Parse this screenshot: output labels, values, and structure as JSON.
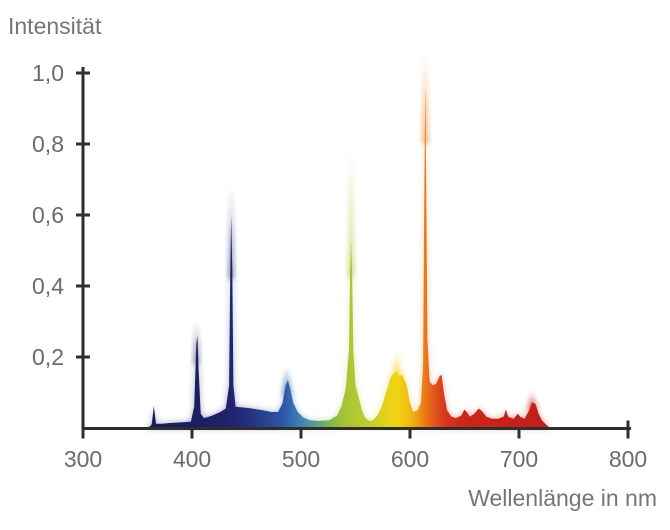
{
  "page": {
    "background_color": "#ffffff",
    "axis_color": "#2e2e2e",
    "tick_label_color": "#6b6b6b",
    "axis_title_color": "#757575"
  },
  "chart_data": {
    "type": "area",
    "title": "",
    "ylabel": "Intensität",
    "xlabel": "Wellenlänge in nm",
    "xlim": [
      300,
      800
    ],
    "ylim": [
      0,
      1.0
    ],
    "x_ticks": [
      300,
      400,
      500,
      600,
      700,
      800
    ],
    "x_tick_labels": [
      "300",
      "400",
      "500",
      "600",
      "700",
      "800"
    ],
    "y_ticks": [
      0.2,
      0.4,
      0.6,
      0.8,
      1.0
    ],
    "y_tick_labels": [
      "0,2",
      "0,4",
      "0,6",
      "0,8",
      "1,0"
    ],
    "grid": false,
    "legend": false,
    "main_peaks": [
      {
        "nm": 365,
        "intensity": 0.06
      },
      {
        "nm": 405,
        "intensity": 0.26
      },
      {
        "nm": 436,
        "intensity": 0.6
      },
      {
        "nm": 487,
        "intensity": 0.14
      },
      {
        "nm": 546,
        "intensity": 0.53
      },
      {
        "nm": 588,
        "intensity": 0.16
      },
      {
        "nm": 614,
        "intensity": 0.97
      },
      {
        "nm": 628,
        "intensity": 0.15
      },
      {
        "nm": 663,
        "intensity": 0.055
      },
      {
        "nm": 688,
        "intensity": 0.055
      },
      {
        "nm": 712,
        "intensity": 0.075
      }
    ],
    "profile": [
      [
        355,
        0
      ],
      [
        361,
        0.004
      ],
      [
        363,
        0.01
      ],
      [
        365,
        0.062
      ],
      [
        367,
        0.012
      ],
      [
        372,
        0.012
      ],
      [
        380,
        0.014
      ],
      [
        392,
        0.016
      ],
      [
        399,
        0.018
      ],
      [
        402,
        0.06
      ],
      [
        404,
        0.24
      ],
      [
        405,
        0.26
      ],
      [
        406,
        0.17
      ],
      [
        408,
        0.04
      ],
      [
        411,
        0.028
      ],
      [
        418,
        0.034
      ],
      [
        426,
        0.045
      ],
      [
        431,
        0.055
      ],
      [
        434,
        0.12
      ],
      [
        435,
        0.42
      ],
      [
        436,
        0.6
      ],
      [
        437,
        0.44
      ],
      [
        438,
        0.12
      ],
      [
        440,
        0.06
      ],
      [
        446,
        0.058
      ],
      [
        455,
        0.055
      ],
      [
        465,
        0.05
      ],
      [
        473,
        0.045
      ],
      [
        479,
        0.045
      ],
      [
        483,
        0.07
      ],
      [
        486,
        0.12
      ],
      [
        488,
        0.135
      ],
      [
        490,
        0.11
      ],
      [
        493,
        0.07
      ],
      [
        497,
        0.045
      ],
      [
        502,
        0.03
      ],
      [
        508,
        0.022
      ],
      [
        517,
        0.02
      ],
      [
        526,
        0.022
      ],
      [
        533,
        0.035
      ],
      [
        537,
        0.06
      ],
      [
        541,
        0.11
      ],
      [
        544,
        0.22
      ],
      [
        545,
        0.44
      ],
      [
        546,
        0.53
      ],
      [
        547,
        0.42
      ],
      [
        548,
        0.22
      ],
      [
        550,
        0.12
      ],
      [
        553,
        0.085
      ],
      [
        556,
        0.05
      ],
      [
        559,
        0.028
      ],
      [
        563,
        0.02
      ],
      [
        566,
        0.022
      ],
      [
        570,
        0.035
      ],
      [
        574,
        0.06
      ],
      [
        578,
        0.1
      ],
      [
        582,
        0.14
      ],
      [
        585,
        0.155
      ],
      [
        588,
        0.16
      ],
      [
        590,
        0.145
      ],
      [
        593,
        0.15
      ],
      [
        597,
        0.12
      ],
      [
        600,
        0.07
      ],
      [
        603,
        0.045
      ],
      [
        607,
        0.05
      ],
      [
        610,
        0.07
      ],
      [
        612,
        0.18
      ],
      [
        613,
        0.62
      ],
      [
        614,
        0.97
      ],
      [
        615,
        0.62
      ],
      [
        616,
        0.25
      ],
      [
        618,
        0.13
      ],
      [
        621,
        0.12
      ],
      [
        624,
        0.125
      ],
      [
        627,
        0.145
      ],
      [
        629,
        0.15
      ],
      [
        631,
        0.1
      ],
      [
        634,
        0.05
      ],
      [
        638,
        0.032
      ],
      [
        642,
        0.028
      ],
      [
        647,
        0.035
      ],
      [
        650,
        0.052
      ],
      [
        652,
        0.045
      ],
      [
        655,
        0.032
      ],
      [
        659,
        0.04
      ],
      [
        663,
        0.055
      ],
      [
        666,
        0.048
      ],
      [
        670,
        0.032
      ],
      [
        675,
        0.026
      ],
      [
        681,
        0.026
      ],
      [
        686,
        0.032
      ],
      [
        688,
        0.052
      ],
      [
        690,
        0.032
      ],
      [
        695,
        0.026
      ],
      [
        699,
        0.04
      ],
      [
        701,
        0.032
      ],
      [
        705,
        0.026
      ],
      [
        709,
        0.048
      ],
      [
        712,
        0.072
      ],
      [
        715,
        0.068
      ],
      [
        718,
        0.04
      ],
      [
        721,
        0.022
      ],
      [
        724,
        0.012
      ],
      [
        727,
        0.004
      ],
      [
        730,
        0
      ]
    ],
    "glow_tips": [
      {
        "nm": 404,
        "half_width": 2,
        "base": 0.18,
        "apex": 0.3
      },
      {
        "nm": 436,
        "half_width": 2,
        "base": 0.42,
        "apex": 0.68
      },
      {
        "nm": 487,
        "half_width": 4,
        "base": 0.09,
        "apex": 0.17
      },
      {
        "nm": 546,
        "half_width": 2.5,
        "base": 0.42,
        "apex": 0.78
      },
      {
        "nm": 588,
        "half_width": 6,
        "base": 0.12,
        "apex": 0.21
      },
      {
        "nm": 614,
        "half_width": 2.5,
        "base": 0.8,
        "apex": 1.05
      },
      {
        "nm": 712,
        "half_width": 4,
        "base": 0.05,
        "apex": 0.1
      }
    ],
    "wavelength_colors": [
      {
        "nm": 355,
        "color": "#1b1a58"
      },
      {
        "nm": 430,
        "color": "#1e2068"
      },
      {
        "nm": 452,
        "color": "#25317f"
      },
      {
        "nm": 470,
        "color": "#2a4692"
      },
      {
        "nm": 484,
        "color": "#2f58a6"
      },
      {
        "nm": 495,
        "color": "#3b74b4"
      },
      {
        "nm": 505,
        "color": "#4a8fad"
      },
      {
        "nm": 516,
        "color": "#5fa381"
      },
      {
        "nm": 527,
        "color": "#83b54e"
      },
      {
        "nm": 540,
        "color": "#a4c437"
      },
      {
        "nm": 553,
        "color": "#b6c930"
      },
      {
        "nm": 566,
        "color": "#c8cd28"
      },
      {
        "nm": 578,
        "color": "#e4d31a"
      },
      {
        "nm": 588,
        "color": "#f2d413"
      },
      {
        "nm": 598,
        "color": "#f2bd12"
      },
      {
        "nm": 606,
        "color": "#efa014"
      },
      {
        "nm": 613,
        "color": "#ec7d16"
      },
      {
        "nm": 621,
        "color": "#e25a1b"
      },
      {
        "nm": 631,
        "color": "#d63a1d"
      },
      {
        "nm": 646,
        "color": "#cb2818"
      },
      {
        "nm": 700,
        "color": "#c52019"
      },
      {
        "nm": 728,
        "color": "#c01f1b"
      }
    ]
  }
}
